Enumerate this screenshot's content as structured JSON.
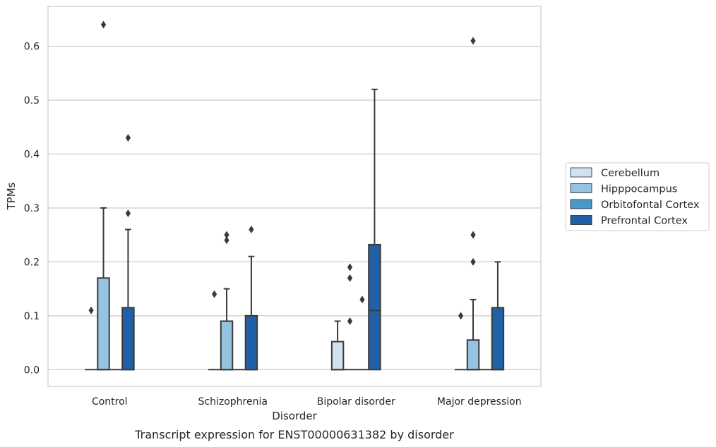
{
  "chart_data": {
    "type": "box",
    "title": "Transcript expression for ENST00000631382 by disorder",
    "xlabel": "Disorder",
    "ylabel": "TPMs",
    "categories": [
      "Control",
      "Schizophrenia",
      "Bipolar disorder",
      "Major depression"
    ],
    "ylim": [
      -0.031,
      0.674
    ],
    "yticks": [
      0.0,
      0.1,
      0.2,
      0.3,
      0.4,
      0.5,
      0.6
    ],
    "ytick_labels": [
      "0.0",
      "0.1",
      "0.2",
      "0.3",
      "0.4",
      "0.5",
      "0.6"
    ],
    "grid": "horizontal",
    "legend_position": "right",
    "series": [
      {
        "name": "Cerebellum",
        "color": "#d0e1f2",
        "boxes": [
          {
            "q1": 0,
            "median": 0,
            "q3": 0,
            "whisker_low": 0,
            "whisker_high": 0,
            "outliers": [
              0.11
            ]
          },
          {
            "q1": 0,
            "median": 0,
            "q3": 0,
            "whisker_low": 0,
            "whisker_high": 0,
            "outliers": [
              0.14
            ]
          },
          {
            "q1": 0,
            "median": 0,
            "q3": 0.052,
            "whisker_low": 0,
            "whisker_high": 0.09,
            "outliers": []
          },
          {
            "q1": 0,
            "median": 0,
            "q3": 0,
            "whisker_low": 0,
            "whisker_high": 0,
            "outliers": [
              0.1
            ]
          }
        ]
      },
      {
        "name": "Hipppocampus",
        "color": "#94c4df",
        "boxes": [
          {
            "q1": 0,
            "median": 0,
            "q3": 0.17,
            "whisker_low": 0,
            "whisker_high": 0.3,
            "outliers": [
              0.64
            ]
          },
          {
            "q1": 0,
            "median": 0,
            "q3": 0.09,
            "whisker_low": 0,
            "whisker_high": 0.15,
            "outliers": [
              0.24,
              0.25
            ]
          },
          {
            "q1": 0,
            "median": 0,
            "q3": 0,
            "whisker_low": 0,
            "whisker_high": 0,
            "outliers": [
              0.09,
              0.17,
              0.19
            ]
          },
          {
            "q1": 0,
            "median": 0,
            "q3": 0.055,
            "whisker_low": 0,
            "whisker_high": 0.13,
            "outliers": [
              0.2,
              0.25,
              0.61
            ]
          }
        ]
      },
      {
        "name": "Orbitofontal Cortex",
        "color": "#4a98c9",
        "boxes": [
          {
            "q1": 0,
            "median": 0,
            "q3": 0,
            "whisker_low": 0,
            "whisker_high": 0,
            "outliers": []
          },
          {
            "q1": 0,
            "median": 0,
            "q3": 0,
            "whisker_low": 0,
            "whisker_high": 0,
            "outliers": []
          },
          {
            "q1": 0,
            "median": 0,
            "q3": 0,
            "whisker_low": 0,
            "whisker_high": 0,
            "outliers": [
              0.13
            ]
          },
          {
            "q1": 0,
            "median": 0,
            "q3": 0,
            "whisker_low": 0,
            "whisker_high": 0,
            "outliers": []
          }
        ]
      },
      {
        "name": "Prefrontal Cortex",
        "color": "#2060a7",
        "boxes": [
          {
            "q1": 0,
            "median": 0,
            "q3": 0.115,
            "whisker_low": 0,
            "whisker_high": 0.26,
            "outliers": [
              0.29,
              0.43
            ]
          },
          {
            "q1": 0,
            "median": 0,
            "q3": 0.1,
            "whisker_low": 0,
            "whisker_high": 0.21,
            "outliers": [
              0.26
            ]
          },
          {
            "q1": 0,
            "median": 0.11,
            "q3": 0.232,
            "whisker_low": 0,
            "whisker_high": 0.52,
            "outliers": []
          },
          {
            "q1": 0,
            "median": 0,
            "q3": 0.115,
            "whisker_low": 0,
            "whisker_high": 0.2,
            "outliers": []
          }
        ]
      }
    ]
  }
}
